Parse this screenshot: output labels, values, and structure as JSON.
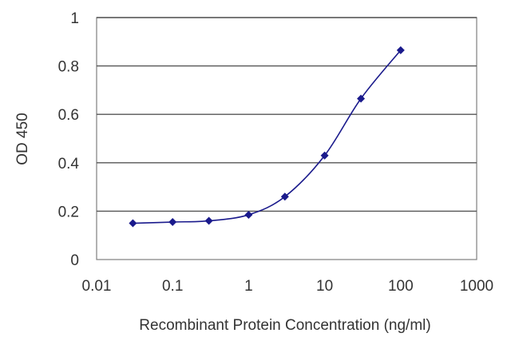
{
  "chart_data": {
    "type": "line",
    "title": "",
    "xlabel": "Recombinant Protein Concentration (ng/ml)",
    "ylabel": "OD 450",
    "x_scale": "log",
    "xlim": [
      0.01,
      1000
    ],
    "ylim": [
      0,
      1
    ],
    "x_ticks": [
      "0.01",
      "0.1",
      "1",
      "10",
      "100",
      "1000"
    ],
    "y_ticks": [
      "0",
      "0.2",
      "0.4",
      "0.6",
      "0.8",
      "1"
    ],
    "grid": "horizontal",
    "legend": "none",
    "series": [
      {
        "x": [
          0.03,
          0.1,
          0.3,
          1,
          3,
          10,
          30,
          100
        ],
        "y": [
          0.15,
          0.155,
          0.16,
          0.185,
          0.26,
          0.43,
          0.665,
          0.865
        ],
        "color": "#1a1a8c",
        "marker": "diamond"
      }
    ]
  }
}
